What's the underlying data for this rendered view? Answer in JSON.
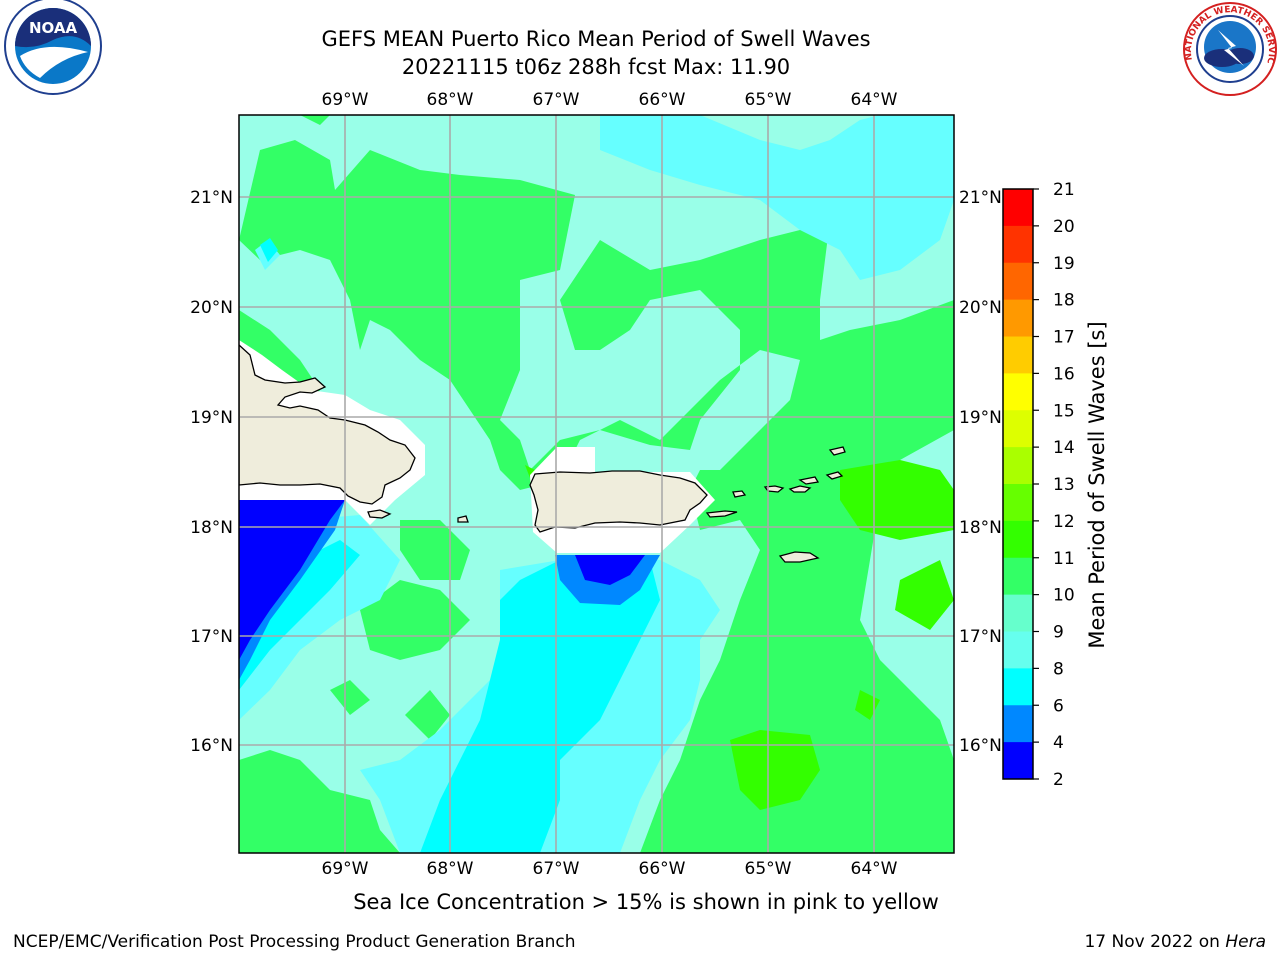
{
  "header": {
    "title_line1": "GEFS MEAN Puerto Rico Mean Period of Swell Waves",
    "title_line2": "20221115 t06z 288h fcst   Max: 11.90"
  },
  "logos": {
    "left": "noaa-logo",
    "right": "nws-logo",
    "left_text": "NOAA",
    "right_ring_text": "NATIONAL WEATHER SERVICE"
  },
  "map": {
    "lon_labels": [
      "69°W",
      "68°W",
      "67°W",
      "66°W",
      "65°W",
      "64°W"
    ],
    "lat_labels": [
      "21°N",
      "20°N",
      "19°N",
      "18°N",
      "17°N",
      "16°N"
    ],
    "land_color": "#efeddc",
    "no_data_color": "#ffffff",
    "grid_color": "#aaaaaa"
  },
  "colorbar": {
    "title": "Mean Period of Swell Waves [s]",
    "ticks": [
      "21",
      "20",
      "19",
      "18",
      "17",
      "16",
      "15",
      "14",
      "13",
      "12",
      "11",
      "10",
      "9",
      "8",
      "6",
      "4",
      "2"
    ],
    "colors": [
      "#ff0000",
      "#ff3300",
      "#ff6600",
      "#ff9900",
      "#ffcc00",
      "#ffff00",
      "#ddff00",
      "#aaff00",
      "#66ff00",
      "#33ff00",
      "#33ff66",
      "#66ffcc",
      "#66ffee",
      "#00ffff",
      "#0088ff",
      "#0000ff"
    ]
  },
  "caption": "Sea Ice Concentration > 15% is shown in pink to yellow",
  "footer": {
    "left": "NCEP/EMC/Verification Post Processing Product Generation Branch",
    "right_prefix": "17 Nov 2022 on ",
    "right_host": "Hera"
  }
}
